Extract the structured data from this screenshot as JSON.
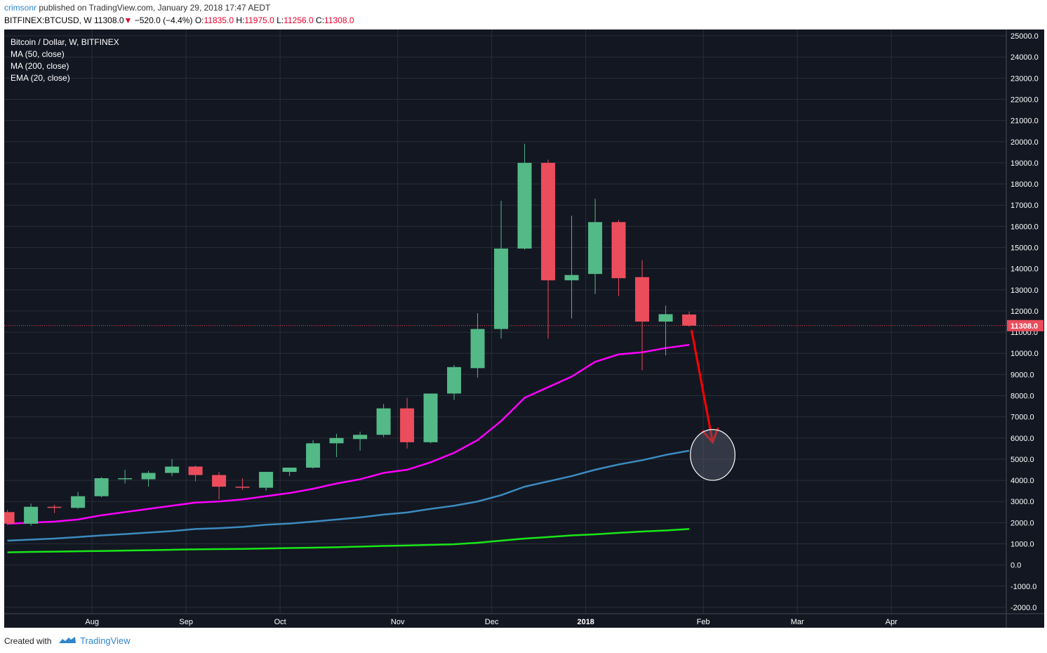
{
  "header": {
    "author": "crimsonr",
    "published_text": "published on TradingView.com, January 29, 2018 17:47 AEDT"
  },
  "symbol_bar": {
    "symbol": "BITFINEX:BTCUSD, W",
    "last": "11308.0",
    "change": "−520.0 (−4.4%)",
    "open_label": "O:",
    "open": "11835.0",
    "high_label": "H:",
    "high": "11975.0",
    "low_label": "L:",
    "low": "11256.0",
    "close_label": "C:",
    "close": "11308.0"
  },
  "legend": {
    "title": "Bitcoin / Dollar, W, BITFINEX",
    "items": [
      "MA (50, close)",
      "MA (200, close)",
      "EMA (20, close)"
    ]
  },
  "footer": {
    "created_with": "Created with",
    "brand": "TradingView"
  },
  "colors": {
    "background": "#131722",
    "grid": "#2a2e39",
    "axis_text": "#ffffff",
    "up": "#53b987",
    "down": "#eb4d5c",
    "ema20": "#ff00ff",
    "ma50": "#3c8bbf",
    "ma200": "#19e619",
    "arrow": "#ff0000",
    "price_line": "#eb4d5c"
  },
  "chart_data": {
    "type": "candlestick",
    "title": "Bitcoin / Dollar, W, BITFINEX",
    "x_labels": [
      {
        "week": 3.6,
        "label": "Aug"
      },
      {
        "week": 7.6,
        "label": "Sep"
      },
      {
        "week": 11.6,
        "label": "Oct"
      },
      {
        "week": 16.6,
        "label": "Nov"
      },
      {
        "week": 20.6,
        "label": "Dec"
      },
      {
        "week": 24.6,
        "label": "2018"
      },
      {
        "week": 29.6,
        "label": "Feb"
      },
      {
        "week": 33.6,
        "label": "Mar"
      },
      {
        "week": 37.6,
        "label": "Apr"
      }
    ],
    "ylim": [
      -2300,
      25300
    ],
    "y_ticks": [
      -2000,
      -1000,
      0,
      1000,
      2000,
      3000,
      4000,
      5000,
      6000,
      7000,
      8000,
      9000,
      10000,
      11000,
      12000,
      13000,
      14000,
      15000,
      16000,
      17000,
      18000,
      19000,
      20000,
      21000,
      22000,
      23000,
      24000,
      25000
    ],
    "y_tick_labels": [
      "-2000.0",
      "-1000.0",
      "0.0",
      "1000.0",
      "2000.0",
      "3000.0",
      "4000.0",
      "5000.0",
      "6000.0",
      "7000.0",
      "8000.0",
      "9000.0",
      "10000.0",
      "11000.0",
      "12000.0",
      "13000.0",
      "14000.0",
      "15000.0",
      "16000.0",
      "17000.0",
      "18000.0",
      "19000.0",
      "20000.0",
      "21000.0",
      "22000.0",
      "23000.0",
      "24000.0",
      "25000.0"
    ],
    "last_price": 11308,
    "last_price_label": "11308.0",
    "candles": [
      {
        "w": 0,
        "o": 2500,
        "h": 2600,
        "l": 1900,
        "c": 1950
      },
      {
        "w": 1,
        "o": 1950,
        "h": 2900,
        "l": 1850,
        "c": 2750
      },
      {
        "w": 2,
        "o": 2750,
        "h": 2850,
        "l": 2450,
        "c": 2700
      },
      {
        "w": 3,
        "o": 2700,
        "h": 3450,
        "l": 2650,
        "c": 3250
      },
      {
        "w": 4,
        "o": 3250,
        "h": 4150,
        "l": 3200,
        "c": 4100
      },
      {
        "w": 5,
        "o": 4050,
        "h": 4500,
        "l": 3850,
        "c": 4100
      },
      {
        "w": 6,
        "o": 4050,
        "h": 4450,
        "l": 3700,
        "c": 4350
      },
      {
        "w": 7,
        "o": 4350,
        "h": 5000,
        "l": 4200,
        "c": 4650
      },
      {
        "w": 8,
        "o": 4650,
        "h": 4700,
        "l": 3950,
        "c": 4250
      },
      {
        "w": 9,
        "o": 4250,
        "h": 4400,
        "l": 3100,
        "c": 3700
      },
      {
        "w": 10,
        "o": 3700,
        "h": 4100,
        "l": 3550,
        "c": 3650
      },
      {
        "w": 11,
        "o": 3650,
        "h": 4400,
        "l": 3500,
        "c": 4400
      },
      {
        "w": 12,
        "o": 4400,
        "h": 4450,
        "l": 4200,
        "c": 4600
      },
      {
        "w": 13,
        "o": 4600,
        "h": 5900,
        "l": 4550,
        "c": 5750
      },
      {
        "w": 14,
        "o": 5750,
        "h": 6200,
        "l": 5100,
        "c": 6000
      },
      {
        "w": 15,
        "o": 5950,
        "h": 6300,
        "l": 5400,
        "c": 6150
      },
      {
        "w": 16,
        "o": 6150,
        "h": 7600,
        "l": 6050,
        "c": 7400
      },
      {
        "w": 17,
        "o": 7400,
        "h": 7900,
        "l": 5500,
        "c": 5800
      },
      {
        "w": 18,
        "o": 5800,
        "h": 8100,
        "l": 5750,
        "c": 8100
      },
      {
        "w": 19,
        "o": 8100,
        "h": 9450,
        "l": 7800,
        "c": 9350
      },
      {
        "w": 20,
        "o": 9300,
        "h": 11900,
        "l": 8850,
        "c": 11150
      },
      {
        "w": 21,
        "o": 11150,
        "h": 17200,
        "l": 10700,
        "c": 14950
      },
      {
        "w": 22,
        "o": 14950,
        "h": 19900,
        "l": 14900,
        "c": 19000
      },
      {
        "w": 23,
        "o": 19000,
        "h": 19150,
        "l": 10700,
        "c": 13450
      },
      {
        "w": 24,
        "o": 13450,
        "h": 16500,
        "l": 11650,
        "c": 13700
      },
      {
        "w": 25,
        "o": 13750,
        "h": 17300,
        "l": 12800,
        "c": 16200
      },
      {
        "w": 26,
        "o": 16200,
        "h": 16300,
        "l": 12700,
        "c": 13550
      },
      {
        "w": 27,
        "o": 13600,
        "h": 14400,
        "l": 9200,
        "c": 11500
      },
      {
        "w": 28,
        "o": 11500,
        "h": 12250,
        "l": 9900,
        "c": 11850
      },
      {
        "w": 29,
        "o": 11835,
        "h": 11975,
        "l": 11256,
        "c": 11308
      }
    ],
    "series": [
      {
        "name": "EMA (20, close)",
        "values": [
          [
            0,
            1950
          ],
          [
            1,
            2000
          ],
          [
            2,
            2050
          ],
          [
            3,
            2150
          ],
          [
            4,
            2350
          ],
          [
            5,
            2500
          ],
          [
            6,
            2650
          ],
          [
            7,
            2800
          ],
          [
            8,
            2950
          ],
          [
            9,
            3000
          ],
          [
            10,
            3100
          ],
          [
            11,
            3250
          ],
          [
            12,
            3400
          ],
          [
            13,
            3600
          ],
          [
            14,
            3850
          ],
          [
            15,
            4050
          ],
          [
            16,
            4350
          ],
          [
            17,
            4500
          ],
          [
            18,
            4850
          ],
          [
            19,
            5300
          ],
          [
            20,
            5900
          ],
          [
            21,
            6800
          ],
          [
            22,
            7900
          ],
          [
            23,
            8400
          ],
          [
            24,
            8900
          ],
          [
            25,
            9600
          ],
          [
            26,
            9950
          ],
          [
            27,
            10050
          ],
          [
            28,
            10250
          ],
          [
            29,
            10400
          ]
        ]
      },
      {
        "name": "MA (50, close)",
        "values": [
          [
            0,
            1150
          ],
          [
            1,
            1200
          ],
          [
            2,
            1250
          ],
          [
            3,
            1320
          ],
          [
            4,
            1400
          ],
          [
            5,
            1460
          ],
          [
            6,
            1530
          ],
          [
            7,
            1600
          ],
          [
            8,
            1700
          ],
          [
            9,
            1740
          ],
          [
            10,
            1800
          ],
          [
            11,
            1900
          ],
          [
            12,
            1960
          ],
          [
            13,
            2050
          ],
          [
            14,
            2150
          ],
          [
            15,
            2250
          ],
          [
            16,
            2380
          ],
          [
            17,
            2480
          ],
          [
            18,
            2650
          ],
          [
            19,
            2800
          ],
          [
            20,
            3000
          ],
          [
            21,
            3300
          ],
          [
            22,
            3700
          ],
          [
            23,
            3950
          ],
          [
            24,
            4200
          ],
          [
            25,
            4500
          ],
          [
            26,
            4750
          ],
          [
            27,
            4950
          ],
          [
            28,
            5200
          ],
          [
            29,
            5400
          ]
        ]
      },
      {
        "name": "MA (200, close)",
        "values": [
          [
            0,
            600
          ],
          [
            1,
            620
          ],
          [
            2,
            630
          ],
          [
            3,
            650
          ],
          [
            4,
            660
          ],
          [
            5,
            680
          ],
          [
            6,
            700
          ],
          [
            7,
            720
          ],
          [
            8,
            740
          ],
          [
            9,
            750
          ],
          [
            10,
            760
          ],
          [
            11,
            780
          ],
          [
            12,
            800
          ],
          [
            13,
            820
          ],
          [
            14,
            840
          ],
          [
            15,
            870
          ],
          [
            16,
            900
          ],
          [
            17,
            920
          ],
          [
            18,
            950
          ],
          [
            19,
            980
          ],
          [
            20,
            1050
          ],
          [
            21,
            1150
          ],
          [
            22,
            1250
          ],
          [
            23,
            1320
          ],
          [
            24,
            1400
          ],
          [
            25,
            1450
          ],
          [
            26,
            1520
          ],
          [
            27,
            1580
          ],
          [
            28,
            1630
          ],
          [
            29,
            1700
          ]
        ]
      }
    ],
    "annotations": {
      "arrow": {
        "from": [
          29.1,
          11100
        ],
        "to": [
          30.0,
          5800
        ]
      },
      "ellipse": {
        "center": [
          30.0,
          5200
        ],
        "rx_weeks": 0.95,
        "ry_value": 1200
      }
    }
  }
}
